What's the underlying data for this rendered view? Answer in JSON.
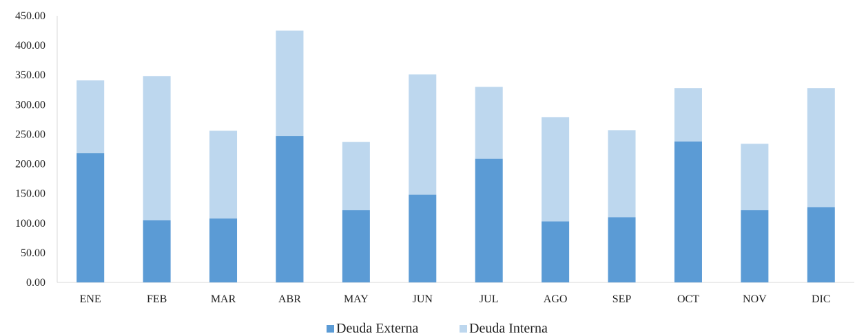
{
  "chart_data": {
    "type": "bar",
    "stacked": true,
    "title": "",
    "xlabel": "",
    "ylabel": "",
    "categories": [
      "ENE",
      "FEB",
      "MAR",
      "ABR",
      "MAY",
      "JUN",
      "JUL",
      "AGO",
      "SEP",
      "OCT",
      "NOV",
      "DIC"
    ],
    "series": [
      {
        "name": "Deuda Externa",
        "color": "#5b9bd5",
        "values": [
          218,
          105,
          108,
          247,
          122,
          148,
          209,
          103,
          110,
          238,
          122,
          127
        ]
      },
      {
        "name": "Deuda Interna",
        "color": "#bdd7ee",
        "values": [
          123,
          243,
          148,
          178,
          115,
          203,
          121,
          176,
          147,
          90,
          112,
          201
        ]
      }
    ],
    "ylim": [
      0,
      450
    ],
    "y_ticks": [
      "0.00",
      "50.00",
      "100.00",
      "150.00",
      "200.00",
      "250.00",
      "300.00",
      "350.00",
      "400.00",
      "450.00"
    ],
    "grid": false,
    "legend_position": "bottom"
  }
}
